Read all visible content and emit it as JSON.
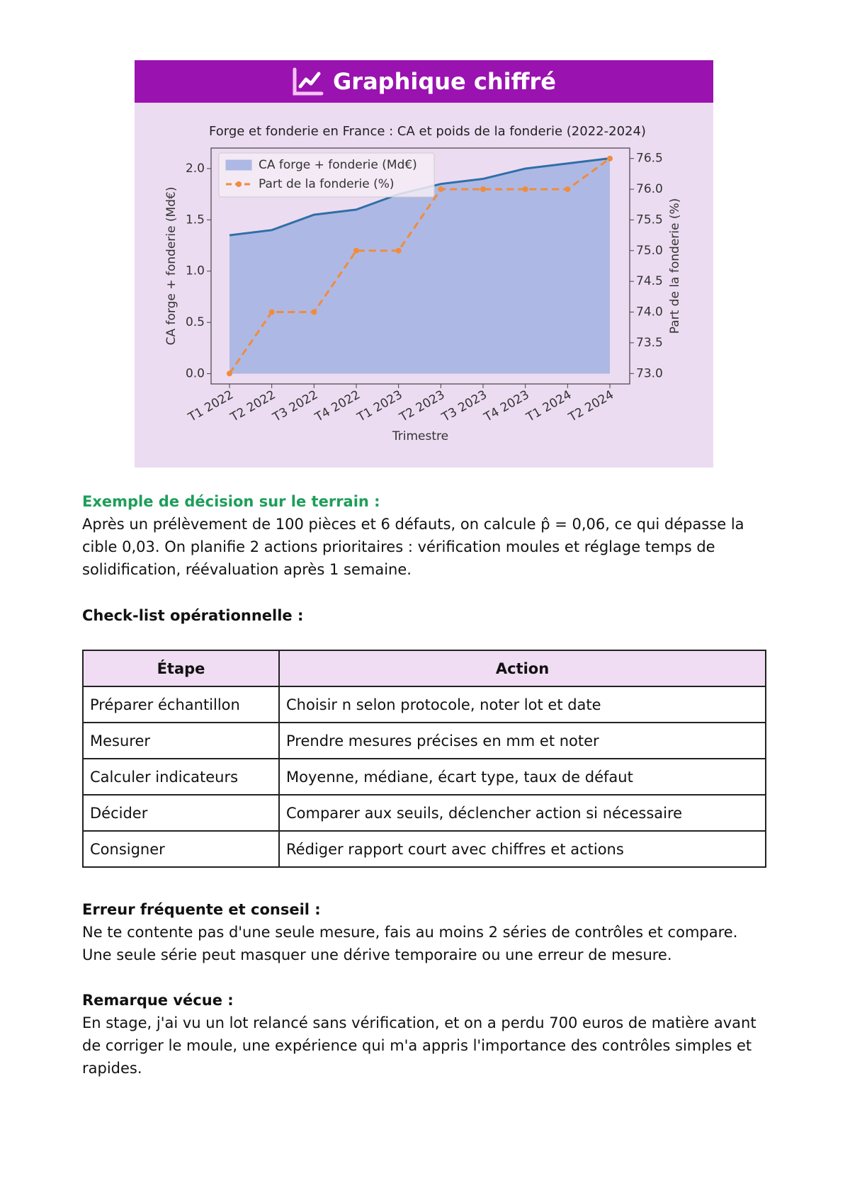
{
  "header": {
    "title": "Graphique chiffré"
  },
  "chart_data": {
    "type": "line",
    "title": "Forge et fonderie en France : CA et poids de la fonderie (2022-2024)",
    "x_label": "Trimestre",
    "y_label": "CA forge + fonderie (Md€)",
    "y2_label": "Part de la fonderie (%)",
    "categories": [
      "T1 2022",
      "T2 2022",
      "T3 2022",
      "T4 2022",
      "T1 2023",
      "T2 2023",
      "T3 2023",
      "T4 2023",
      "T1 2024",
      "T2 2024"
    ],
    "series": [
      {
        "name": "CA forge + fonderie (Md€)",
        "type": "area",
        "color": "#2f6fa7",
        "fill": "#aeb8e4",
        "values": [
          1.35,
          1.4,
          1.55,
          1.6,
          1.75,
          1.85,
          1.9,
          2.0,
          2.05,
          2.1
        ]
      },
      {
        "name": "Part de la fonderie (%)",
        "type": "line",
        "axis": "y2",
        "color": "#f08c3c",
        "dashed": true,
        "values": [
          73.0,
          74.0,
          74.0,
          75.0,
          75.0,
          76.0,
          76.0,
          76.0,
          76.0,
          76.5
        ]
      }
    ],
    "ylim": [
      -0.1,
      2.2
    ],
    "yticks": [
      {
        "value": 0,
        "label": "0.0"
      },
      0.5,
      {
        "value": 1,
        "label": "1.0"
      },
      1.5,
      {
        "value": 2,
        "label": "2.0"
      }
    ],
    "y2lim": [
      72.83,
      76.67
    ],
    "y2ticks": [
      {
        "value": 73,
        "label": "73.0"
      },
      73.5,
      {
        "value": 74,
        "label": "74.0"
      },
      74.5,
      {
        "value": 75,
        "label": "75.0"
      },
      75.5,
      {
        "value": 76,
        "label": "76.0"
      },
      76.5
    ],
    "legend": "upper left"
  },
  "example": {
    "heading": "Exemple de décision sur le terrain :",
    "text": "Après un prélèvement de 100 pièces et 6 défauts, on calcule p̂ = 0,06, ce qui dépasse la cible 0,03. On planifie 2 actions prioritaires : vérification moules et réglage temps de solidification, réévaluation après 1 semaine."
  },
  "checklist": {
    "heading": "Check-list opérationnelle :",
    "columns": [
      "Étape",
      "Action"
    ],
    "rows": [
      [
        "Préparer échantillon",
        "Choisir n selon protocole, noter lot et date"
      ],
      [
        "Mesurer",
        "Prendre mesures précises en mm et noter"
      ],
      [
        "Calculer indicateurs",
        "Moyenne, médiane, écart type, taux de défaut"
      ],
      [
        "Décider",
        "Comparer aux seuils, déclencher action si nécessaire"
      ],
      [
        "Consigner",
        "Rédiger rapport court avec chiffres et actions"
      ]
    ]
  },
  "error": {
    "heading": "Erreur fréquente et conseil :",
    "text": "Ne te contente pas d'une seule mesure, fais au moins 2 séries de contrôles et compare. Une seule série peut masquer une dérive temporaire ou une erreur de mesure."
  },
  "remark": {
    "heading": "Remarque vécue :",
    "text": "En stage, j'ai vu un lot relancé sans vérification, et on a perdu 700 euros de matière avant de corriger le moule, une expérience qui m'a appris l'importance des contrôles simples et rapides."
  }
}
